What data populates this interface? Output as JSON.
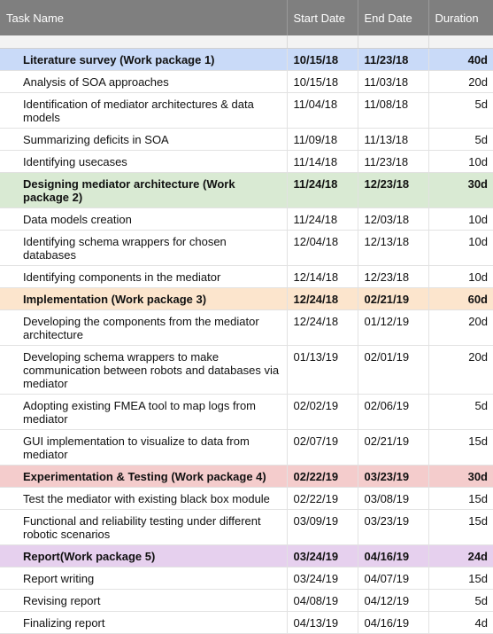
{
  "header": {
    "task_name": "Task Name",
    "start_date": "Start Date",
    "end_date": "End Date",
    "duration": "Duration"
  },
  "colors": {
    "header_bg": "#7f7f7f",
    "package_1": "#c9daf8",
    "package_2": "#d9ead3",
    "package_3": "#fce5cd",
    "package_4": "#f4cccc",
    "package_5": "#e6d0ee"
  },
  "rows": [
    {
      "type": "package",
      "color": "#c9daf8",
      "name": "Literature survey (Work package 1)",
      "start": "10/15/18",
      "end": "11/23/18",
      "duration": "40d"
    },
    {
      "type": "task",
      "name": "Analysis of SOA approaches",
      "start": "10/15/18",
      "end": "11/03/18",
      "duration": "20d"
    },
    {
      "type": "task",
      "name": "Identification of mediator architectures & data models",
      "start": "11/04/18",
      "end": "11/08/18",
      "duration": "5d"
    },
    {
      "type": "task",
      "name": "Summarizing deficits in SOA",
      "start": "11/09/18",
      "end": "11/13/18",
      "duration": "5d"
    },
    {
      "type": "task",
      "name": "Identifying usecases",
      "start": "11/14/18",
      "end": "11/23/18",
      "duration": "10d"
    },
    {
      "type": "package",
      "color": "#d9ead3",
      "name": "Designing mediator architecture (Work package 2)",
      "start": "11/24/18",
      "end": "12/23/18",
      "duration": "30d"
    },
    {
      "type": "task",
      "name": "Data models creation",
      "start": "11/24/18",
      "end": "12/03/18",
      "duration": "10d"
    },
    {
      "type": "task",
      "name": "Identifying schema wrappers for chosen databases",
      "start": "12/04/18",
      "end": "12/13/18",
      "duration": "10d"
    },
    {
      "type": "task",
      "name": "Identifying components in the mediator",
      "start": "12/14/18",
      "end": "12/23/18",
      "duration": "10d"
    },
    {
      "type": "package",
      "color": "#fce5cd",
      "name": "Implementation (Work package 3)",
      "start": "12/24/18",
      "end": "02/21/19",
      "duration": "60d"
    },
    {
      "type": "task",
      "name": "Developing the components from the mediator architecture",
      "start": "12/24/18",
      "end": "01/12/19",
      "duration": "20d"
    },
    {
      "type": "task",
      "name": "Developing schema wrappers to make communication between robots and databases via mediator",
      "start": "01/13/19",
      "end": "02/01/19",
      "duration": "20d"
    },
    {
      "type": "task",
      "name": "Adopting existing FMEA tool to map logs from mediator",
      "start": "02/02/19",
      "end": "02/06/19",
      "duration": "5d"
    },
    {
      "type": "task",
      "name": "GUI implementation to visualize to data from mediator",
      "start": "02/07/19",
      "end": "02/21/19",
      "duration": "15d"
    },
    {
      "type": "package",
      "color": "#f4cccc",
      "name": "Experimentation & Testing (Work package 4)",
      "start": "02/22/19",
      "end": "03/23/19",
      "duration": "30d"
    },
    {
      "type": "task",
      "name": "Test the mediator with existing black box module",
      "start": "02/22/19",
      "end": "03/08/19",
      "duration": "15d"
    },
    {
      "type": "task",
      "name": "Functional and reliability testing under different robotic scenarios",
      "start": "03/09/19",
      "end": "03/23/19",
      "duration": "15d"
    },
    {
      "type": "package",
      "color": "#e6d0ee",
      "name": "Report(Work package 5)",
      "start": "03/24/19",
      "end": "04/16/19",
      "duration": "24d"
    },
    {
      "type": "task",
      "name": "Report writing",
      "start": "03/24/19",
      "end": "04/07/19",
      "duration": "15d"
    },
    {
      "type": "task",
      "name": "Revising report",
      "start": "04/08/19",
      "end": "04/12/19",
      "duration": "5d"
    },
    {
      "type": "task",
      "name": "Finalizing report",
      "start": "04/13/19",
      "end": "04/16/19",
      "duration": "4d"
    }
  ]
}
